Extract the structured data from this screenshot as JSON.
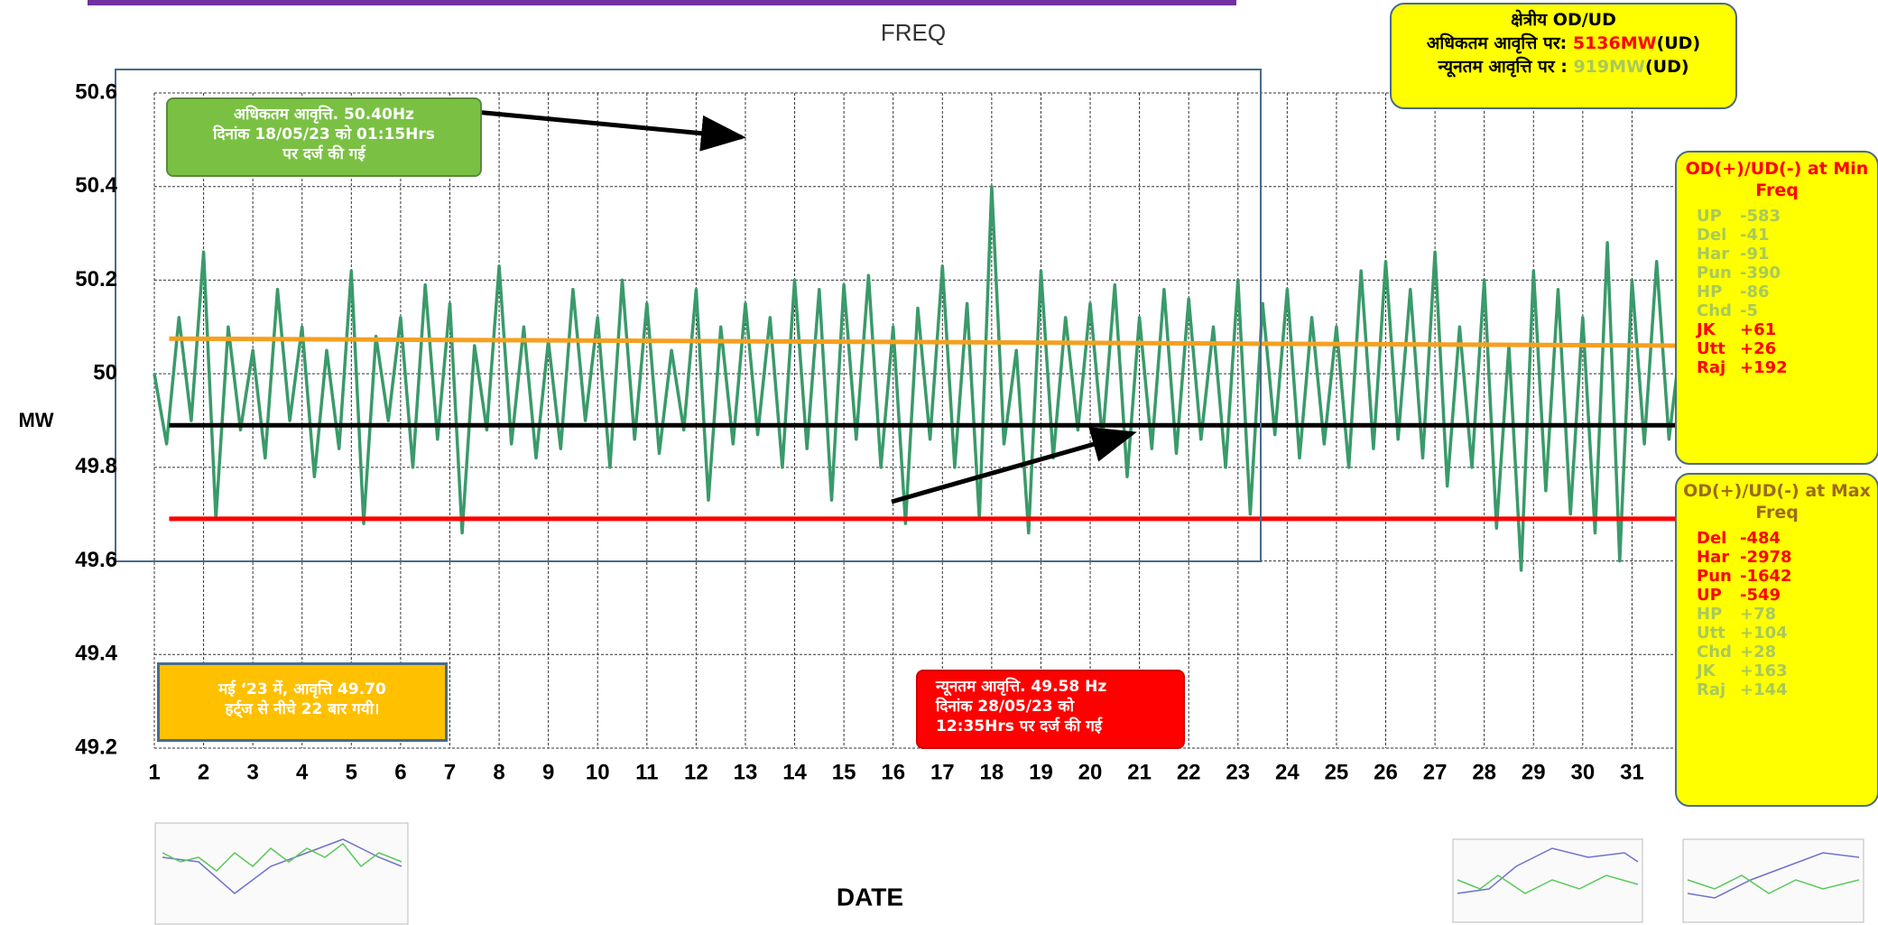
{
  "chart_data": {
    "type": "line",
    "title": "FREQ",
    "x_label": "DATE",
    "y_label": "MW",
    "x": [
      1,
      1.25,
      1.5,
      1.75,
      2,
      2.25,
      2.5,
      2.75,
      3,
      3.25,
      3.5,
      3.75,
      4,
      4.25,
      4.5,
      4.75,
      5,
      5.25,
      5.5,
      5.75,
      6,
      6.25,
      6.5,
      6.75,
      7,
      7.25,
      7.5,
      7.75,
      8,
      8.25,
      8.5,
      8.75,
      9,
      9.25,
      9.5,
      9.75,
      10,
      10.25,
      10.5,
      10.75,
      11,
      11.25,
      11.5,
      11.75,
      12,
      12.25,
      12.5,
      12.75,
      13,
      13.25,
      13.5,
      13.75,
      14,
      14.25,
      14.5,
      14.75,
      15,
      15.25,
      15.5,
      15.75,
      16,
      16.25,
      16.5,
      16.75,
      17,
      17.25,
      17.5,
      17.75,
      18,
      18.25,
      18.5,
      18.75,
      19,
      19.25,
      19.5,
      19.75,
      20,
      20.25,
      20.5,
      20.75,
      21,
      21.25,
      21.5,
      21.75,
      22,
      22.25,
      22.5,
      22.75,
      23,
      23.25,
      23.5,
      23.75,
      24,
      24.25,
      24.5,
      24.75,
      25,
      25.25,
      25.5,
      25.75,
      26,
      26.25,
      26.5,
      26.75,
      27,
      27.25,
      27.5,
      27.75,
      28,
      28.25,
      28.5,
      28.75,
      29,
      29.25,
      29.5,
      29.75,
      30,
      30.25,
      30.5,
      30.75,
      31,
      31.25,
      31.5,
      31.75,
      32
    ],
    "series": [
      {
        "color": "#3a9a6a",
        "values": [
          50.0,
          49.85,
          50.12,
          49.9,
          50.26,
          49.69,
          50.1,
          49.88,
          50.05,
          49.82,
          50.18,
          49.9,
          50.1,
          49.78,
          50.05,
          49.84,
          50.22,
          49.68,
          50.08,
          49.9,
          50.12,
          49.8,
          50.19,
          49.86,
          50.15,
          49.66,
          50.06,
          49.88,
          50.23,
          49.85,
          50.1,
          49.82,
          50.07,
          49.84,
          50.18,
          49.9,
          50.12,
          49.8,
          50.2,
          49.86,
          50.15,
          49.83,
          50.05,
          49.88,
          50.18,
          49.73,
          50.1,
          49.85,
          50.15,
          49.87,
          50.12,
          49.8,
          50.2,
          49.84,
          50.18,
          49.73,
          50.19,
          49.86,
          50.21,
          49.8,
          50.1,
          49.68,
          50.14,
          49.86,
          50.23,
          49.8,
          50.15,
          49.69,
          50.4,
          49.85,
          50.05,
          49.66,
          50.22,
          49.82,
          50.12,
          49.88,
          50.15,
          49.86,
          50.19,
          49.78,
          50.12,
          49.84,
          50.18,
          49.83,
          50.16,
          49.86,
          50.1,
          49.8,
          50.2,
          49.7,
          50.15,
          49.87,
          50.18,
          49.82,
          50.12,
          49.85,
          50.1,
          49.8,
          50.22,
          49.84,
          50.24,
          49.86,
          50.18,
          49.82,
          50.26,
          49.76,
          50.1,
          49.8,
          50.2,
          49.67,
          50.06,
          49.58,
          50.22,
          49.75,
          50.18,
          49.7,
          50.12,
          49.66,
          50.28,
          49.6,
          50.2,
          49.85,
          50.24,
          49.86,
          50.08
        ]
      }
    ],
    "reference_lines": [
      {
        "color": "#f5a020",
        "x": [
          1.3,
          32
        ],
        "values": [
          50.075,
          50.06
        ]
      },
      {
        "color": "#000000",
        "x": [
          1.3,
          32
        ],
        "values": [
          49.89,
          49.89
        ]
      },
      {
        "color": "#ff0000",
        "x": [
          1.3,
          32
        ],
        "values": [
          49.69,
          49.69
        ]
      }
    ],
    "xlim": [
      1,
      32
    ],
    "ylim": [
      49.2,
      50.6
    ],
    "xticks": [
      1,
      2,
      3,
      4,
      5,
      6,
      7,
      8,
      9,
      10,
      11,
      12,
      13,
      14,
      15,
      16,
      17,
      18,
      19,
      20,
      21,
      22,
      23,
      24,
      25,
      26,
      27,
      28,
      29,
      30,
      31
    ],
    "yticks": [
      49.2,
      49.4,
      49.6,
      49.8,
      50,
      50.2,
      50.4,
      50.6
    ],
    "grid": true
  },
  "max_note": [
    "अधिकतम आवृत्ति. 50.40Hz",
    "दिनांक 18/05/23 को 01:15Hrs",
    "पर दर्ज की गई"
  ],
  "min_note": [
    "न्यूनतम आवृत्ति. 49.58 Hz",
    "दिनांक 28/05/23 को",
    "12:35Hrs पर दर्ज की गई"
  ],
  "below_note": [
    "मई ‘23 में, आवृत्ति 49.70",
    "हर्ट्ज से नीचे 22 बार गयी।"
  ],
  "regional": {
    "title": "क्षेत्रीय OD/UD",
    "lines": [
      [
        {
          "text": "अधिकतम आवृत्ति पर: "
        },
        {
          "text": "5136MW",
          "color": "#ff0000"
        },
        {
          "text": "(UD)"
        }
      ],
      [
        {
          "text": "न्यूनतम आवृत्ति पर : "
        },
        {
          "text": "919MW",
          "color": "#a9c95a"
        },
        {
          "text": "(UD)"
        }
      ]
    ]
  },
  "min_freq_panel": {
    "title": "OD(+)/UD(-) at Min Freq",
    "color": "#ff0000",
    "rows": [
      {
        "name": "UP",
        "value": "-583",
        "color": "#a9c95a"
      },
      {
        "name": "Del",
        "value": "-41",
        "color": "#a9c95a"
      },
      {
        "name": "Har",
        "value": "-91",
        "color": "#a9c95a"
      },
      {
        "name": "Pun",
        "value": "-390",
        "color": "#a9c95a"
      },
      {
        "name": "HP",
        "value": "-86",
        "color": "#a9c95a"
      },
      {
        "name": "Chd",
        "value": "-5",
        "color": "#a9c95a"
      },
      {
        "name": "JK",
        "value": "+61",
        "color": "#ff0000"
      },
      {
        "name": "Utt",
        "value": "+26",
        "color": "#ff0000"
      },
      {
        "name": "Raj",
        "value": "+192",
        "color": "#ff0000"
      }
    ]
  },
  "max_freq_panel": {
    "title": "OD(+)/UD(-) at Max Freq",
    "color": "#9c6b1a",
    "rows": [
      {
        "name": "Del",
        "value": "-484",
        "color": "#ff0000"
      },
      {
        "name": "Har",
        "value": "-2978",
        "color": "#ff0000"
      },
      {
        "name": "Pun",
        "value": "-1642",
        "color": "#ff0000"
      },
      {
        "name": "UP",
        "value": "-549",
        "color": "#ff0000"
      },
      {
        "name": "HP",
        "value": "+78",
        "color": "#a9c95a"
      },
      {
        "name": "Utt",
        "value": "+104",
        "color": "#a9c95a"
      },
      {
        "name": "Chd",
        "value": "+28",
        "color": "#a9c95a"
      },
      {
        "name": "JK",
        "value": "+163",
        "color": "#a9c95a"
      },
      {
        "name": "Raj",
        "value": "+144",
        "color": "#a9c95a"
      }
    ]
  }
}
